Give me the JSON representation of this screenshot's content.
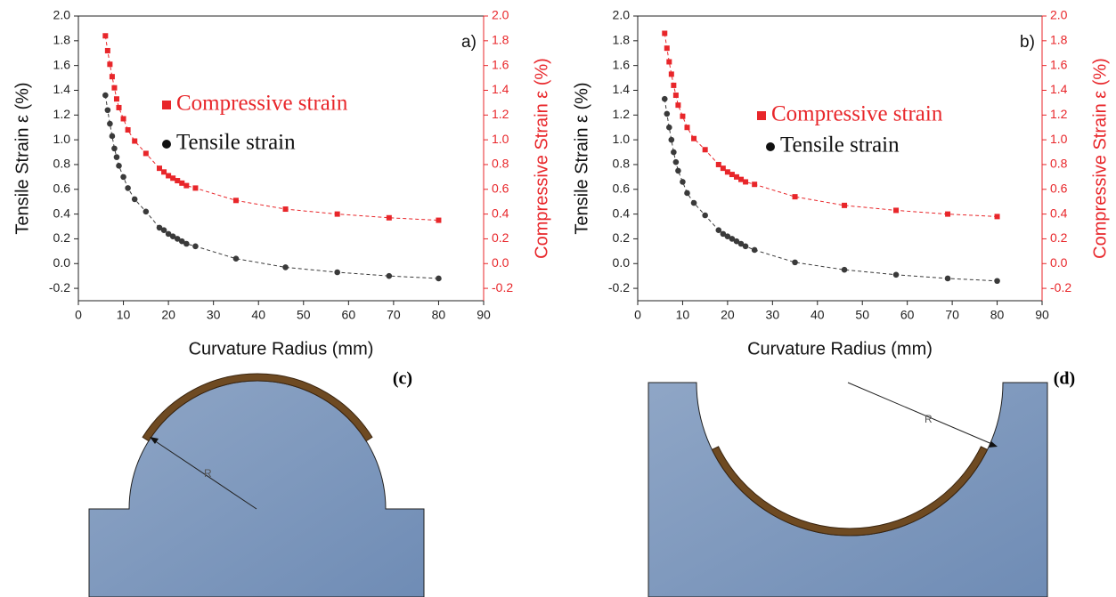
{
  "chart_data": [
    {
      "type": "scatter",
      "panel_label": "a)",
      "xlabel": "Curvature Radius (mm)",
      "ylabel": "Tensile Strain ε (%)",
      "y2label": "Compressive Strain ε (%)",
      "x": [
        6,
        6.5,
        7,
        7.5,
        8,
        8.5,
        9,
        10,
        11,
        12.5,
        15,
        18,
        19,
        20,
        21,
        22,
        23,
        24,
        26,
        35,
        46,
        57.5,
        69,
        80
      ],
      "series": [
        {
          "name": "Compressive strain",
          "color": "#e8262a",
          "marker": "square",
          "axis": "y2",
          "values": [
            1.84,
            1.72,
            1.61,
            1.51,
            1.42,
            1.33,
            1.26,
            1.17,
            1.08,
            0.99,
            0.89,
            0.77,
            0.74,
            0.71,
            0.69,
            0.67,
            0.65,
            0.63,
            0.61,
            0.51,
            0.44,
            0.4,
            0.37,
            0.35
          ]
        },
        {
          "name": "Tensile strain",
          "color": "#3a3a3a",
          "marker": "circle",
          "values": [
            1.36,
            1.24,
            1.13,
            1.03,
            0.93,
            0.86,
            0.79,
            0.7,
            0.61,
            0.52,
            0.42,
            0.29,
            0.27,
            0.24,
            0.22,
            0.2,
            0.18,
            0.16,
            0.14,
            0.04,
            -0.03,
            -0.07,
            -0.1,
            -0.12
          ]
        }
      ],
      "xlim": [
        0,
        90
      ],
      "xticks": [
        0,
        10,
        20,
        30,
        40,
        50,
        60,
        70,
        80,
        90
      ],
      "ylim": [
        -0.3,
        2.0
      ],
      "yticks": [
        -0.2,
        {
          "value": 0,
          "label": "0.0"
        },
        0.2,
        0.4,
        0.6,
        0.8,
        {
          "value": 1,
          "label": "1.0"
        },
        1.2,
        1.4,
        1.6,
        1.8,
        {
          "value": 2,
          "label": "2.0"
        }
      ],
      "y2lim": [
        -0.3,
        2.0
      ],
      "y2ticks": [
        -0.2,
        {
          "value": 0,
          "label": "0.0"
        },
        0.2,
        0.4,
        0.6,
        0.8,
        {
          "value": 1,
          "label": "1.0"
        },
        1.2,
        1.4,
        1.6,
        1.8,
        {
          "value": 2,
          "label": "2.0"
        }
      ]
    },
    {
      "type": "scatter",
      "panel_label": "b)",
      "xlabel": "Curvature Radius (mm)",
      "ylabel": "Tensile Strain ε (%)",
      "y2label": "Compressive Strain ε (%)",
      "x": [
        6,
        6.5,
        7,
        7.5,
        8,
        8.5,
        9,
        10,
        11,
        12.5,
        15,
        18,
        19,
        20,
        21,
        22,
        23,
        24,
        26,
        35,
        46,
        57.5,
        69,
        80
      ],
      "series": [
        {
          "name": "Compressive strain",
          "color": "#e8262a",
          "marker": "square",
          "axis": "y2",
          "values": [
            1.86,
            1.74,
            1.63,
            1.53,
            1.44,
            1.36,
            1.28,
            1.19,
            1.1,
            1.01,
            0.92,
            0.8,
            0.77,
            0.74,
            0.72,
            0.7,
            0.68,
            0.66,
            0.64,
            0.54,
            0.47,
            0.43,
            0.4,
            0.38
          ]
        },
        {
          "name": "Tensile strain",
          "color": "#3a3a3a",
          "marker": "circle",
          "values": [
            1.33,
            1.21,
            1.1,
            1.0,
            0.9,
            0.82,
            0.75,
            0.66,
            0.57,
            0.49,
            0.39,
            0.27,
            0.24,
            0.22,
            0.2,
            0.18,
            0.16,
            0.14,
            0.11,
            0.01,
            -0.05,
            -0.09,
            -0.12,
            -0.14
          ]
        }
      ],
      "xlim": [
        0,
        90
      ],
      "xticks": [
        0,
        10,
        20,
        30,
        40,
        50,
        60,
        70,
        80,
        90
      ],
      "ylim": [
        -0.3,
        2.0
      ],
      "yticks": [
        -0.2,
        {
          "value": 0,
          "label": "0.0"
        },
        0.2,
        0.4,
        0.6,
        0.8,
        {
          "value": 1,
          "label": "1.0"
        },
        1.2,
        1.4,
        1.6,
        1.8,
        {
          "value": 2,
          "label": "2.0"
        }
      ],
      "y2lim": [
        -0.3,
        2.0
      ],
      "y2ticks": [
        -0.2,
        {
          "value": 0,
          "label": "0.0"
        },
        0.2,
        0.4,
        0.6,
        0.8,
        {
          "value": 1,
          "label": "1.0"
        },
        1.2,
        1.4,
        1.6,
        1.8,
        {
          "value": 2,
          "label": "2.0"
        }
      ]
    }
  ],
  "diagrams": [
    {
      "label": "(c)",
      "radius_label": "R"
    },
    {
      "label": "(d)",
      "radius_label": "R"
    }
  ]
}
